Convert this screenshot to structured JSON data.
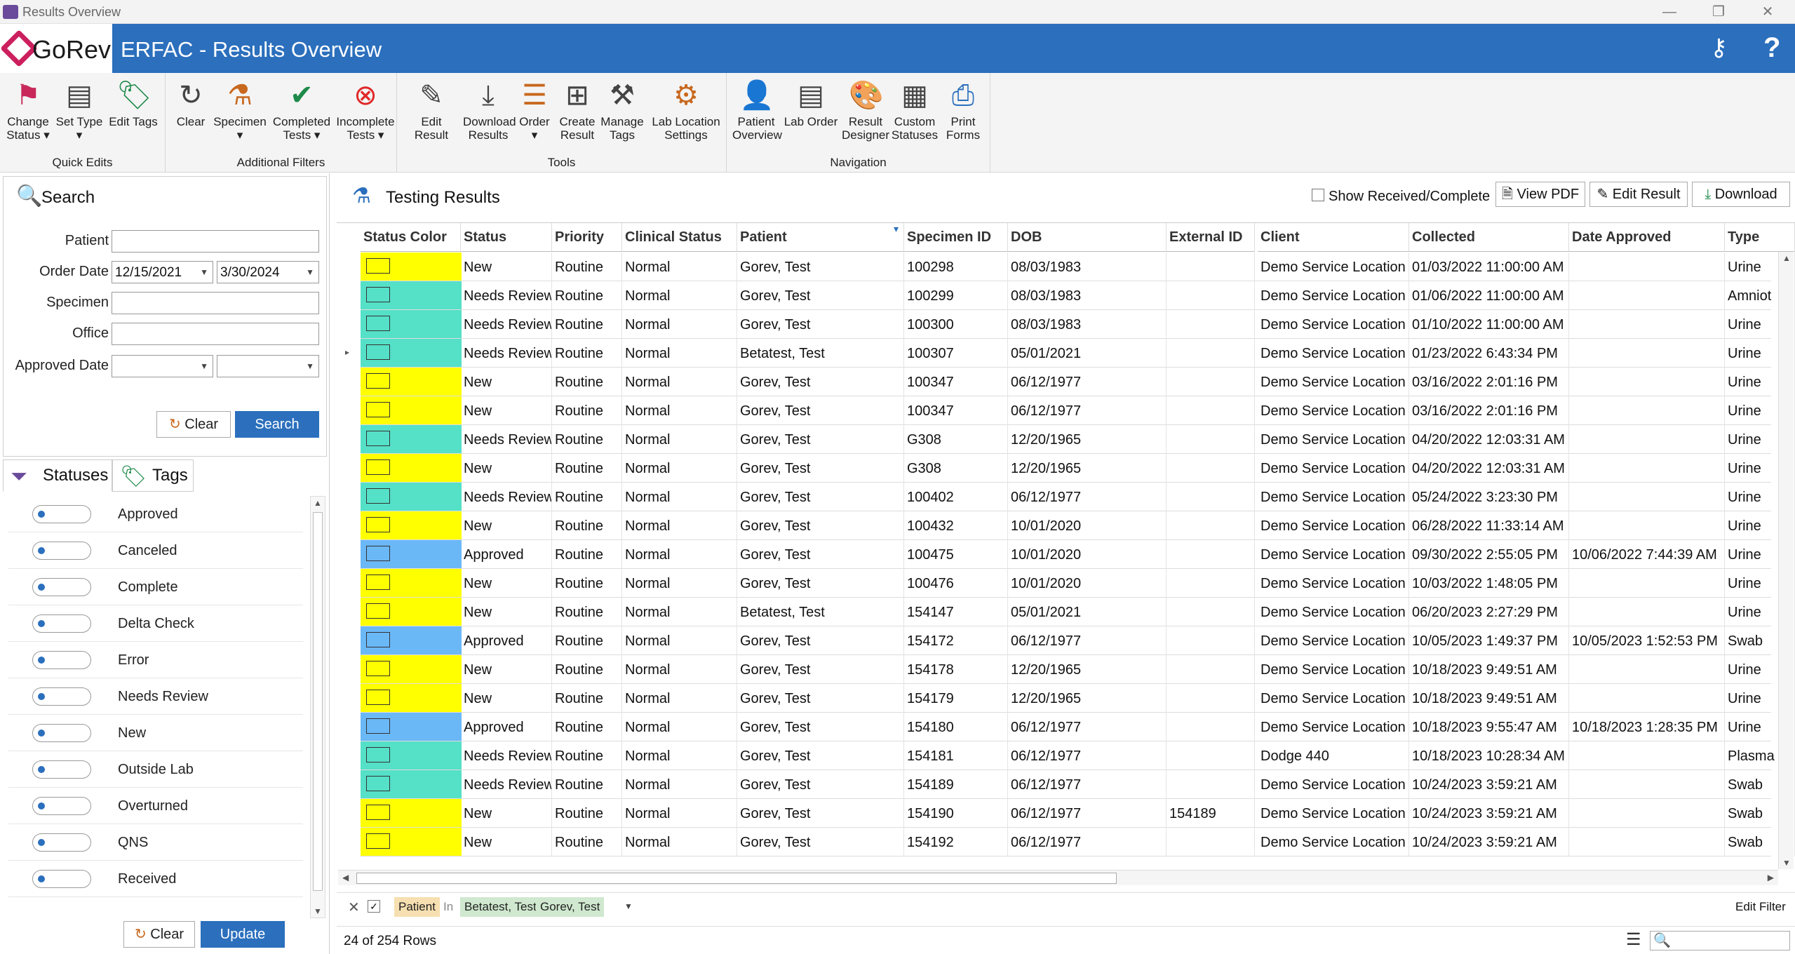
{
  "window": {
    "title": "Results Overview",
    "minimize": "—",
    "maximize": "❐",
    "close": "✕"
  },
  "header": {
    "logo_text": "GoRev",
    "title": "ERFAC - Results Overview",
    "help": "?"
  },
  "ribbon": {
    "groups": [
      {
        "name": "Quick Edits",
        "buttons": [
          {
            "label1": "Change",
            "label2": "Status",
            "icon": "flag-icon"
          },
          {
            "label1": "Set Type",
            "label2": "",
            "icon": "document-gear-icon"
          },
          {
            "label1": "Edit Tags",
            "label2": "",
            "icon": "tag-icon"
          }
        ]
      },
      {
        "name": "Additional Filters",
        "buttons": [
          {
            "label1": "Clear",
            "label2": "",
            "icon": "refresh-icon"
          },
          {
            "label1": "Specimen",
            "label2": "",
            "icon": "flask-icon"
          },
          {
            "label1": "Completed",
            "label2": "Tests",
            "icon": "checkmark-icon"
          },
          {
            "label1": "Incomplete",
            "label2": "Tests",
            "icon": "x-circle-icon"
          }
        ]
      },
      {
        "name": "Tools",
        "buttons": [
          {
            "label1": "Edit Result",
            "label2": "",
            "icon": "edit-document-icon"
          },
          {
            "label1": "Download",
            "label2": "Results",
            "icon": "download-document-icon"
          },
          {
            "label1": "Order",
            "label2": "",
            "icon": "list-icon"
          },
          {
            "label1": "Create",
            "label2": "Result",
            "icon": "add-document-icon"
          },
          {
            "label1": "Manage",
            "label2": "Tags",
            "icon": "tools-icon"
          },
          {
            "label1": "Lab Location",
            "label2": "Settings",
            "icon": "gears-icon"
          }
        ]
      },
      {
        "name": "Navigation",
        "buttons": [
          {
            "label1": "Patient",
            "label2": "Overview",
            "icon": "person-icon"
          },
          {
            "label1": "Lab Order",
            "label2": "",
            "icon": "document-lines-icon"
          },
          {
            "label1": "Result",
            "label2": "Designer",
            "icon": "palette-icon"
          },
          {
            "label1": "Custom",
            "label2": "Statuses",
            "icon": "document-list-icon"
          },
          {
            "label1": "Print",
            "label2": "Forms",
            "icon": "printer-icon"
          }
        ]
      }
    ]
  },
  "search": {
    "title": "Search",
    "patient_label": "Patient",
    "patient_value": "",
    "order_date_label": "Order Date",
    "order_date_from": "12/15/2021",
    "order_date_to": "3/30/2024",
    "specimen_label": "Specimen",
    "specimen_value": "",
    "office_label": "Office",
    "office_value": "",
    "approved_date_label": "Approved Date",
    "approved_from": "",
    "approved_to": "",
    "clear_label": "Clear",
    "search_label": "Search"
  },
  "filters": {
    "tab_statuses": "Statuses",
    "tab_tags": "Tags",
    "statuses": [
      "Approved",
      "Canceled",
      "Complete",
      "Delta Check",
      "Error",
      "Needs Review",
      "New",
      "Outside Lab",
      "Overturned",
      "QNS",
      "Received"
    ],
    "clear_label": "Clear",
    "update_label": "Update"
  },
  "results": {
    "title": "Testing Results",
    "show_received_label": "Show Received/Complete",
    "view_pdf_label": "View PDF",
    "edit_result_label": "Edit Result",
    "download_label": "Download",
    "columns": [
      "Status Color",
      "Status",
      "Priority",
      "Clinical Status",
      "Patient",
      "Specimen ID",
      "DOB",
      "External ID",
      "Client",
      "Collected",
      "Date Approved",
      "Type"
    ],
    "status_colors": {
      "New": "#ffff00",
      "Needs Review": "#55e0c8",
      "Approved": "#6bb8f7"
    },
    "rows": [
      [
        "New",
        "Routine",
        "Normal",
        "Gorev, Test",
        "100298",
        "08/03/1983",
        "",
        "Demo Service Location",
        "01/03/2022 11:00:00 AM",
        "",
        "Urine"
      ],
      [
        "Needs Review",
        "Routine",
        "Normal",
        "Gorev, Test",
        "100299",
        "08/03/1983",
        "",
        "Demo Service Location",
        "01/06/2022 11:00:00 AM",
        "",
        "Amniot"
      ],
      [
        "Needs Review",
        "Routine",
        "Normal",
        "Gorev, Test",
        "100300",
        "08/03/1983",
        "",
        "Demo Service Location",
        "01/10/2022 11:00:00 AM",
        "",
        "Urine"
      ],
      [
        "Needs Review",
        "Routine",
        "Normal",
        "Betatest, Test",
        "100307",
        "05/01/2021",
        "",
        "Demo Service Location",
        "01/23/2022 6:43:34 PM",
        "",
        "Urine"
      ],
      [
        "New",
        "Routine",
        "Normal",
        "Gorev, Test",
        "100347",
        "06/12/1977",
        "",
        "Demo Service Location",
        "03/16/2022 2:01:16 PM",
        "",
        "Urine"
      ],
      [
        "New",
        "Routine",
        "Normal",
        "Gorev, Test",
        "100347",
        "06/12/1977",
        "",
        "Demo Service Location",
        "03/16/2022 2:01:16 PM",
        "",
        "Urine"
      ],
      [
        "Needs Review",
        "Routine",
        "Normal",
        "Gorev, Test",
        "G308",
        "12/20/1965",
        "",
        "Demo Service Location",
        "04/20/2022 12:03:31 AM",
        "",
        "Urine"
      ],
      [
        "New",
        "Routine",
        "Normal",
        "Gorev, Test",
        "G308",
        "12/20/1965",
        "",
        "Demo Service Location",
        "04/20/2022 12:03:31 AM",
        "",
        "Urine"
      ],
      [
        "Needs Review",
        "Routine",
        "Normal",
        "Gorev, Test",
        "100402",
        "06/12/1977",
        "",
        "Demo Service Location",
        "05/24/2022 3:23:30 PM",
        "",
        "Urine"
      ],
      [
        "New",
        "Routine",
        "Normal",
        "Gorev, Test",
        "100432",
        "10/01/2020",
        "",
        "Demo Service Location",
        "06/28/2022 11:33:14 AM",
        "",
        "Urine"
      ],
      [
        "Approved",
        "Routine",
        "Normal",
        "Gorev, Test",
        "100475",
        "10/01/2020",
        "",
        "Demo Service Location",
        "09/30/2022 2:55:05 PM",
        "10/06/2022 7:44:39 AM",
        "Urine"
      ],
      [
        "New",
        "Routine",
        "Normal",
        "Gorev, Test",
        "100476",
        "10/01/2020",
        "",
        "Demo Service Location",
        "10/03/2022 1:48:05 PM",
        "",
        "Urine"
      ],
      [
        "New",
        "Routine",
        "Normal",
        "Betatest, Test",
        "154147",
        "05/01/2021",
        "",
        "Demo Service Location",
        "06/20/2023 2:27:29 PM",
        "",
        "Urine"
      ],
      [
        "Approved",
        "Routine",
        "Normal",
        "Gorev, Test",
        "154172",
        "06/12/1977",
        "",
        "Demo Service Location",
        "10/05/2023 1:49:37 PM",
        "10/05/2023 1:52:53 PM",
        "Swab"
      ],
      [
        "New",
        "Routine",
        "Normal",
        "Gorev, Test",
        "154178",
        "12/20/1965",
        "",
        "Demo Service Location",
        "10/18/2023 9:49:51 AM",
        "",
        "Urine"
      ],
      [
        "New",
        "Routine",
        "Normal",
        "Gorev, Test",
        "154179",
        "12/20/1965",
        "",
        "Demo Service Location",
        "10/18/2023 9:49:51 AM",
        "",
        "Urine"
      ],
      [
        "Approved",
        "Routine",
        "Normal",
        "Gorev, Test",
        "154180",
        "06/12/1977",
        "",
        "Demo Service Location",
        "10/18/2023 9:55:47 AM",
        "10/18/2023 1:28:35 PM",
        "Urine"
      ],
      [
        "Needs Review",
        "Routine",
        "Normal",
        "Gorev, Test",
        "154181",
        "06/12/1977",
        "",
        "Dodge 440",
        "10/18/2023 10:28:34 AM",
        "",
        "Plasma"
      ],
      [
        "Needs Review",
        "Routine",
        "Normal",
        "Gorev, Test",
        "154189",
        "06/12/1977",
        "",
        "Demo Service Location",
        "10/24/2023 3:59:21 AM",
        "",
        "Swab"
      ],
      [
        "New",
        "Routine",
        "Normal",
        "Gorev, Test",
        "154190",
        "06/12/1977",
        "154189",
        "Demo Service Location",
        "10/24/2023 3:59:21 AM",
        "",
        "Swab"
      ],
      [
        "New",
        "Routine",
        "Normal",
        "Gorev, Test",
        "154192",
        "06/12/1977",
        "",
        "Demo Service Location",
        "10/24/2023 3:59:21 AM",
        "",
        "Swab"
      ]
    ],
    "filter": {
      "field": "Patient",
      "op": "In",
      "values": [
        "Betatest, Test",
        "Gorev, Test"
      ],
      "edit_label": "Edit Filter"
    },
    "row_count": "24 of 254 Rows"
  }
}
